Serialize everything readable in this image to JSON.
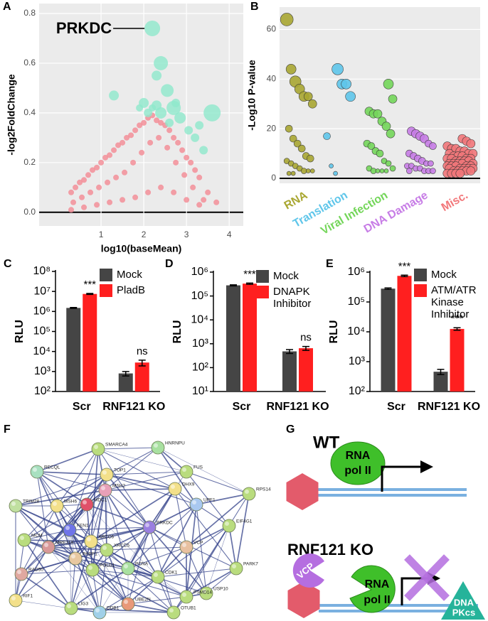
{
  "chart_data": [
    {
      "type": "scatter",
      "panel_label": "A",
      "x_label": "log10(baseMean)",
      "y_label": "-log2FoldChange",
      "annotation": "PRKDC",
      "grid": true,
      "background": "#ebebeb",
      "reference_line": 0,
      "xlim": [
        -0.45,
        4.33
      ],
      "ylim": [
        -0.055,
        0.84
      ],
      "xticks": [
        1,
        2,
        3,
        4
      ],
      "yticks": [
        {
          "value": 0,
          "label": "0.0"
        },
        {
          "value": 0.2,
          "label": "0.2"
        },
        {
          "value": 0.4,
          "label": "0.4"
        },
        {
          "value": 0.6,
          "label": "0.6"
        },
        {
          "value": 0.8,
          "label": "0.8"
        }
      ],
      "series": [
        {
          "color": "#f48a94",
          "x": [
            0.3,
            0.4,
            0.5,
            0.6,
            0.7,
            0.8,
            0.9,
            1.0,
            1.1,
            1.2,
            1.3,
            1.4,
            1.5,
            1.6,
            1.7,
            1.8,
            1.9,
            2.0,
            2.1,
            2.2,
            2.3,
            2.4,
            2.5,
            2.6,
            2.7,
            2.8,
            2.9,
            3.0,
            3.1,
            3.2,
            3.3,
            3.5,
            3.7,
            0.35,
            0.55,
            0.75,
            0.95,
            1.15,
            1.35,
            1.55,
            1.75,
            1.95,
            2.15,
            2.35,
            2.55,
            2.75,
            2.95,
            3.15,
            3.4,
            0.3,
            0.6,
            0.9,
            1.2,
            1.5,
            1.8,
            2.1,
            2.4,
            2.7,
            3.0,
            3.3
          ],
          "values": [
            0.08,
            0.1,
            0.12,
            0.13,
            0.15,
            0.17,
            0.18,
            0.2,
            0.22,
            0.23,
            0.25,
            0.27,
            0.28,
            0.3,
            0.31,
            0.33,
            0.35,
            0.36,
            0.38,
            0.39,
            0.37,
            0.36,
            0.35,
            0.33,
            0.3,
            0.28,
            0.25,
            0.22,
            0.2,
            0.17,
            0.14,
            0.08,
            0.04,
            0.04,
            0.06,
            0.08,
            0.1,
            0.12,
            0.14,
            0.16,
            0.2,
            0.24,
            0.28,
            0.3,
            0.26,
            0.2,
            0.15,
            0.1,
            0.05,
            0.01,
            0.02,
            0.03,
            0.04,
            0.05,
            0.06,
            0.08,
            0.1,
            0.08,
            0.05,
            0.03
          ]
        },
        {
          "color": "#8fe8cc",
          "x": [
            2.2,
            2.4,
            2.3,
            2.55,
            2.7,
            3.6,
            1.3,
            2.0,
            2.3,
            2.4,
            1.9,
            2.85,
            3.2,
            3.3,
            3.4,
            2.6,
            2.1,
            3.05,
            2.75,
            2.2
          ],
          "values": [
            0.74,
            0.6,
            0.55,
            0.49,
            0.42,
            0.4,
            0.47,
            0.44,
            0.43,
            0.4,
            0.42,
            0.38,
            0.3,
            0.35,
            0.25,
            0.36,
            0.4,
            0.33,
            0.44,
            0.42
          ],
          "sizes": [
            11,
            10,
            7,
            9,
            10,
            12,
            7,
            7,
            7,
            8,
            5,
            8,
            6,
            6,
            6,
            6,
            6,
            6,
            6,
            5
          ]
        }
      ]
    },
    {
      "type": "strip",
      "panel_label": "B",
      "y_label": "-Log10 P-value",
      "grid": true,
      "background": "#ebebeb",
      "reference_line": 0,
      "ylim": [
        -2,
        69
      ],
      "yticks": [
        0,
        20,
        40,
        60
      ],
      "series": [
        {
          "name": "RNA",
          "color": "#a9a732",
          "values": [
            64,
            44,
            39,
            36,
            33,
            33,
            30,
            20,
            16,
            14,
            12,
            9,
            8,
            7,
            6,
            5,
            4,
            3,
            3,
            3,
            2,
            2
          ],
          "sizes": [
            9,
            7,
            8,
            7,
            7,
            6,
            6,
            5,
            5,
            5,
            5,
            5,
            5,
            4,
            4,
            4,
            4,
            4,
            3,
            3,
            3,
            3
          ]
        },
        {
          "name": "Translation",
          "color": "#5fc6ea",
          "values": [
            44,
            38,
            38,
            33,
            17,
            5,
            2
          ],
          "sizes": [
            8,
            7,
            7,
            7,
            5,
            3,
            3
          ]
        },
        {
          "name": "Viral Infection",
          "color": "#74d65a",
          "values": [
            38,
            32,
            27,
            26,
            26,
            23,
            21,
            18,
            14,
            13,
            11,
            10,
            7,
            6,
            4,
            4,
            3,
            3,
            3,
            3
          ],
          "sizes": [
            7,
            6,
            6,
            6,
            6,
            6,
            6,
            6,
            5,
            5,
            5,
            5,
            4,
            4,
            4,
            4,
            4,
            3,
            3,
            3
          ]
        },
        {
          "name": "DNA Damage",
          "color": "#c77de6",
          "values": [
            19,
            18,
            17,
            16,
            14,
            13,
            10,
            9,
            8,
            7,
            6,
            6,
            5,
            5,
            4,
            4,
            3,
            3,
            3,
            3
          ],
          "sizes": [
            6,
            6,
            6,
            6,
            5,
            5,
            5,
            5,
            5,
            5,
            4,
            4,
            4,
            4,
            4,
            4,
            4,
            4,
            4,
            4
          ]
        },
        {
          "name": "Misc.",
          "color": "#f2777a",
          "values": [
            16,
            15,
            14,
            13,
            12,
            12,
            11,
            11,
            10,
            10,
            10,
            9,
            9,
            9,
            8,
            8,
            8,
            8,
            7,
            7,
            7,
            7,
            6,
            6,
            6,
            6,
            6,
            5,
            5,
            5,
            5,
            5,
            4,
            4,
            4,
            4,
            4,
            3,
            3,
            3,
            3,
            3,
            2,
            2,
            2,
            2
          ],
          "sizes": [
            6,
            6,
            6,
            6,
            6,
            6,
            6,
            6,
            6,
            6,
            6,
            6,
            6,
            6,
            6,
            6,
            6,
            6,
            6,
            6,
            6,
            6,
            6,
            6,
            6,
            6,
            6,
            6,
            6,
            6,
            6,
            6,
            6,
            6,
            6,
            6,
            6,
            6,
            6,
            6,
            6,
            6,
            6,
            6,
            6,
            6
          ]
        }
      ]
    },
    {
      "type": "bar",
      "panel_label": "C",
      "y_label": "RLU",
      "log_scale": true,
      "categories": [
        "Scr",
        "RNF121 KO"
      ],
      "ylim": [
        100,
        100000000
      ],
      "yticks": [
        {
          "value": 100,
          "label": "10²"
        },
        {
          "value": 1000,
          "label": "10³"
        },
        {
          "value": 10000,
          "label": "10⁴"
        },
        {
          "value": 100000,
          "label": "10⁵"
        },
        {
          "value": 1000000,
          "label": "10⁶"
        },
        {
          "value": 10000000,
          "label": "10⁷"
        },
        {
          "value": 100000000,
          "label": "10⁸"
        }
      ],
      "series": [
        {
          "name": "Mock",
          "color": "#454545",
          "values": [
            1500000,
            800
          ],
          "errors": [
            80000,
            200
          ]
        },
        {
          "name": "PladB",
          "color": "#ff1f1f",
          "values": [
            7500000,
            2800
          ],
          "errors": [
            400000,
            900
          ],
          "labels": [
            "***",
            "ns"
          ]
        }
      ]
    },
    {
      "type": "bar",
      "panel_label": "D",
      "y_label": "RLU",
      "log_scale": true,
      "categories": [
        "Scr",
        "RNF121 KO"
      ],
      "ylim": [
        10,
        1000000
      ],
      "yticks": [
        {
          "value": 10,
          "label": "10¹"
        },
        {
          "value": 100,
          "label": "10²"
        },
        {
          "value": 1000,
          "label": "10³"
        },
        {
          "value": 10000,
          "label": "10⁴"
        },
        {
          "value": 100000,
          "label": "10⁵"
        },
        {
          "value": 1000000,
          "label": "10⁶"
        }
      ],
      "series": [
        {
          "name": "Mock",
          "color": "#454545",
          "values": [
            280000,
            480
          ],
          "errors": [
            15000,
            90
          ]
        },
        {
          "name": "DNAPK Inhibitor",
          "color": "#ff1f1f",
          "values": [
            330000,
            650
          ],
          "errors": [
            20000,
            120
          ],
          "labels": [
            "***",
            "ns"
          ]
        }
      ]
    },
    {
      "type": "bar",
      "panel_label": "E",
      "y_label": "RLU",
      "log_scale": true,
      "categories": [
        "Scr",
        "RNF121 KO"
      ],
      "ylim": [
        100,
        1000000
      ],
      "yticks": [
        {
          "value": 100,
          "label": "10²"
        },
        {
          "value": 1000,
          "label": "10³"
        },
        {
          "value": 10000,
          "label": "10⁴"
        },
        {
          "value": 100000,
          "label": "10⁵"
        },
        {
          "value": 1000000,
          "label": "10⁶"
        }
      ],
      "series": [
        {
          "name": "Mock",
          "color": "#454545",
          "values": [
            280000,
            460
          ],
          "errors": [
            15000,
            90
          ]
        },
        {
          "name": "ATM/ATR Kinase Inhibitor",
          "color": "#ff1f1f",
          "values": [
            750000,
            12500
          ],
          "errors": [
            40000,
            1200
          ],
          "labels": [
            "***",
            "***"
          ]
        }
      ]
    }
  ],
  "network": {
    "panel_label": "F",
    "nodes": [
      {
        "label": "SMARCA4",
        "color": "#b9dc7e"
      },
      {
        "label": "HNRNPU",
        "color": "#a8e0a0"
      },
      {
        "label": "RECQL",
        "color": "#a8e0c0"
      },
      {
        "label": "TOP1",
        "color": "#f3e08a"
      },
      {
        "label": "FUS",
        "color": "#b9dc7e"
      },
      {
        "label": "DHX9",
        "color": "#f3e08a"
      },
      {
        "label": "RPS14",
        "color": "#b9dc7e"
      },
      {
        "label": "TRIM28",
        "color": "#c0e0a0"
      },
      {
        "label": "MSH6",
        "color": "#f3e08a"
      },
      {
        "label": "MSH2",
        "color": "#e8a0b8"
      },
      {
        "label": "MDC1",
        "color": "#e0506a"
      },
      {
        "label": "UPF1",
        "color": "#a9c8f0"
      },
      {
        "label": "PRKDC",
        "color": "#9a7fe0"
      },
      {
        "label": "EIF4G1",
        "color": "#b9dc7e"
      },
      {
        "label": "MCM",
        "color": "#b9dc7e"
      },
      {
        "label": "FEN1",
        "color": "#6f74e8"
      },
      {
        "label": "XRCC6",
        "color": "#f3e08a"
      },
      {
        "label": "XRCC5",
        "color": "#b9dc7e"
      },
      {
        "label": "VCP",
        "color": "#e8c0a0"
      },
      {
        "label": "MRE11A",
        "color": "#d89898"
      },
      {
        "label": "PARP1",
        "color": "#e8c8a0"
      },
      {
        "label": "RAD50",
        "color": "#e0a8a0"
      },
      {
        "label": "POLD1",
        "color": "#b9dc7e"
      },
      {
        "label": "PCNA",
        "color": "#a8e0a0"
      },
      {
        "label": "CDK1",
        "color": "#b9dc7e"
      },
      {
        "label": "PARK7",
        "color": "#b9dc7e"
      },
      {
        "label": "RIF1",
        "color": "#f3e08a"
      },
      {
        "label": "LIG3",
        "color": "#b9dc7e"
      },
      {
        "label": "DDB1",
        "color": "#a0d0e8"
      },
      {
        "label": "UBE2N",
        "color": "#e89878"
      },
      {
        "label": "USP10",
        "color": "#b9dc7e"
      },
      {
        "label": "PSMD14",
        "color": "#b9dc7e"
      },
      {
        "label": "OTUB1",
        "color": "#b9dc7e"
      }
    ]
  },
  "diagram": {
    "panel_label": "G",
    "wt": {
      "title": "WT",
      "polymerase": [
        "RNA",
        "pol II"
      ]
    },
    "ko": {
      "title": "RNF121 KO",
      "polymerase": [
        "RNA",
        "pol II"
      ],
      "vcp": "VCP",
      "dnapk": [
        "DNA",
        "PKcs"
      ]
    }
  }
}
